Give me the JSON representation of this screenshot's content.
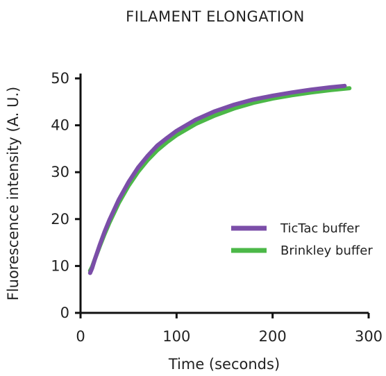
{
  "chart_data": {
    "type": "line",
    "title": "FILAMENT ELONGATION",
    "xlabel": "Time (seconds)",
    "ylabel": "Fluorescence intensity (A. U.)",
    "xlim": [
      0,
      300
    ],
    "ylim": [
      0,
      50
    ],
    "xticks": [
      0,
      100,
      200,
      300
    ],
    "yticks": [
      0,
      10,
      20,
      30,
      40,
      50
    ],
    "grid": false,
    "legend_position": "right",
    "series": [
      {
        "name": "TicTac buffer",
        "color": "#7b4ea8",
        "x": [
          10,
          12,
          15,
          20,
          25,
          30,
          40,
          50,
          60,
          70,
          80,
          90,
          100,
          120,
          140,
          160,
          180,
          200,
          220,
          240,
          260,
          275
        ],
        "y": [
          8.5,
          9.5,
          11.5,
          14.5,
          17.3,
          19.8,
          24.2,
          27.9,
          31.0,
          33.5,
          35.7,
          37.3,
          38.8,
          41.2,
          43.0,
          44.4,
          45.5,
          46.3,
          47.0,
          47.6,
          48.1,
          48.4
        ]
      },
      {
        "name": "Brinkley buffer",
        "color": "#4cb848",
        "x": [
          10,
          12,
          15,
          20,
          25,
          30,
          40,
          50,
          60,
          70,
          80,
          90,
          100,
          120,
          140,
          160,
          180,
          200,
          220,
          240,
          260,
          280
        ],
        "y": [
          9.0,
          9.8,
          11.5,
          14.2,
          16.8,
          19.2,
          23.5,
          27.1,
          30.1,
          32.6,
          34.7,
          36.4,
          37.9,
          40.3,
          42.1,
          43.6,
          44.8,
          45.7,
          46.4,
          47.0,
          47.5,
          47.9
        ]
      }
    ]
  }
}
